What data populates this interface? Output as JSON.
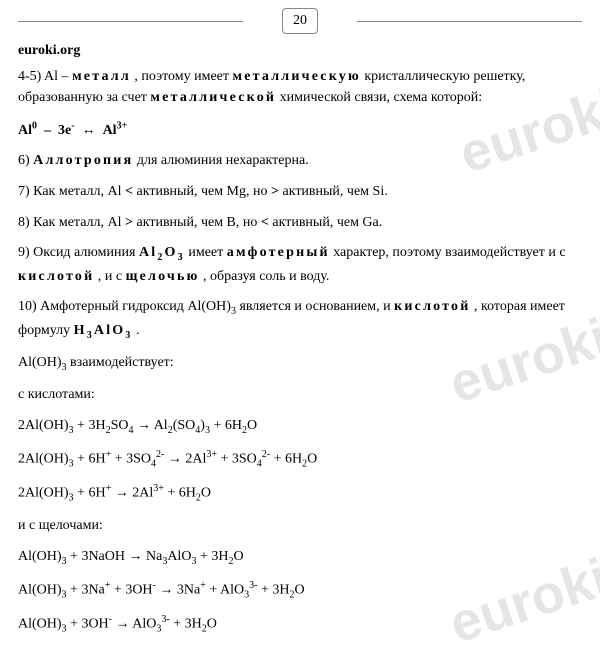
{
  "page_number": "20",
  "site": "euroki.org",
  "watermark_text": "euroki",
  "colors": {
    "text": "#000000",
    "background": "#ffffff",
    "border": "#888888",
    "watermark": "rgba(150,150,150,0.25)"
  },
  "typography": {
    "base_fontsize": 14,
    "watermark_fontsize": 54,
    "font_family": "Times New Roman"
  },
  "lines": {
    "l1_a": "4-5) Al – ",
    "l1_b": "металл",
    "l1_c": " , поэтому имеет ",
    "l1_d": "металлическую",
    "l1_e": "  кристаллическую решетку, образованную за счет ",
    "l1_f": "металлической",
    "l1_g": "  химической связи, схема которой:",
    "l2": "Al⁰  –  3e⁻  ↔  Al³⁺",
    "l3_a": "6) ",
    "l3_b": "Аллотропия",
    "l3_c": " для алюминия нехарактерна.",
    "l4": "7) Как металл, Al <  активный, чем Mg, но >  активный, чем Si.",
    "l5": "8) Как металл, Al >  активный, чем B, но <  активный, чем Ga.",
    "l6_a": "9) Оксид алюминия ",
    "l6_b": "Al₂O₃",
    "l6_c": "  имеет ",
    "l6_d": "амфотерный",
    "l6_e": "  характер, поэтому взаимодействует и с ",
    "l6_f": "кислотой",
    "l6_g": " , и с ",
    "l6_h": "щелочью",
    "l6_i": " , образуя соль и воду.",
    "l7_a": "10) Амфотерный гидроксид Al(OH)₃ является и основанием, и ",
    "l7_b": "кислотой",
    "l7_c": " , которая имеет формулу  ",
    "l7_d": "H₃AlO₃",
    "l7_e": " .",
    "l8": "Al(OH)₃ взаимодействует:",
    "l9": "с кислотами:",
    "l10": "2Al(OH)₃ + 3H₂SO₄ → Al₂(SO₄)₃ + 6H₂O",
    "l11": "2Al(OH)₃ + 6H⁺ + 3SO₄²⁻ → 2Al³⁺ + 3SO₄²⁻ + 6H₂O",
    "l12": "2Al(OH)₃ + 6H⁺ → 2Al³⁺ + 6H₂O",
    "l13": "и с щелочами:",
    "l14": "Al(OH)₃ + 3NaOH → Na₃AlO₃ + 3H₂O",
    "l15": "Al(OH)₃ + 3Na⁺ + 3OH⁻ → 3Na⁺ + AlO₃³⁻ + 3H₂O",
    "l16": "Al(OH)₃ + 3OH⁻ → AlO₃³⁻ + 3H₂O"
  }
}
